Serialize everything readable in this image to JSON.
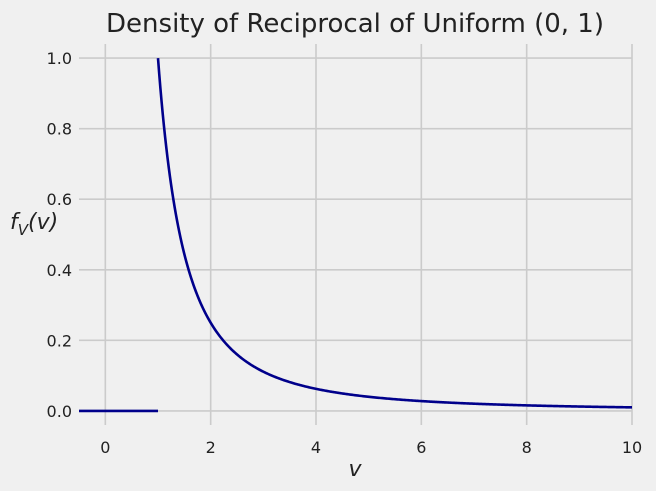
{
  "chart_data": {
    "type": "line",
    "title": "Density of Reciprocal of Uniform (0, 1)",
    "xlabel": "v",
    "ylabel": {
      "main": "f",
      "sub": "V",
      "arg": "(v)"
    },
    "xlim": [
      -0.5,
      10
    ],
    "ylim": [
      -0.04,
      1.04
    ],
    "xticks": [
      0,
      2,
      4,
      6,
      8,
      10
    ],
    "xtick_labels": [
      "0",
      "2",
      "4",
      "6",
      "8",
      "10"
    ],
    "yticks": [
      0.0,
      0.2,
      0.4,
      0.6,
      0.8,
      1.0
    ],
    "ytick_labels": [
      "0.0",
      "0.2",
      "0.4",
      "0.6",
      "0.8",
      "1.0"
    ],
    "grid": true,
    "colors": {
      "line": "#00008b",
      "grid": "#cbcbcb",
      "background": "#f0f0f0"
    },
    "series": [
      {
        "segments": [
          {
            "kind": "constant",
            "x": [
              -0.5,
              1
            ],
            "y": [
              0,
              0
            ]
          },
          {
            "kind": "function",
            "formula": "1/v^2",
            "x_range": [
              1,
              10
            ]
          }
        ]
      }
    ]
  }
}
